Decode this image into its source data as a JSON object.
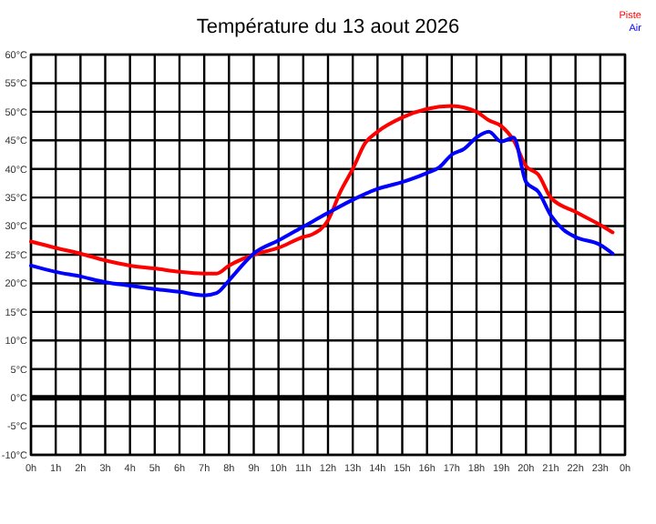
{
  "chart_data": {
    "type": "line",
    "title": "Température du 13 aout 2026",
    "xlim": [
      "2026-08-13T00:00",
      "2026-08-14T00:00"
    ],
    "xticks": [
      {
        "value": "2026-08-13T00:00",
        "label": "0h"
      },
      {
        "value": "2026-08-13T01:00",
        "label": "1h"
      },
      {
        "value": "2026-08-13T02:00",
        "label": "2h"
      },
      {
        "value": "2026-08-13T03:00",
        "label": "3h"
      },
      {
        "value": "2026-08-13T04:00",
        "label": "4h"
      },
      {
        "value": "2026-08-13T05:00",
        "label": "5h"
      },
      {
        "value": "2026-08-13T06:00",
        "label": "6h"
      },
      {
        "value": "2026-08-13T07:00",
        "label": "7h"
      },
      {
        "value": "2026-08-13T08:00",
        "label": "8h"
      },
      {
        "value": "2026-08-13T09:00",
        "label": "9h"
      },
      {
        "value": "2026-08-13T10:00",
        "label": "10h"
      },
      {
        "value": "2026-08-13T11:00",
        "label": "11h"
      },
      {
        "value": "2026-08-13T12:00",
        "label": "12h"
      },
      {
        "value": "2026-08-13T13:00",
        "label": "13h"
      },
      {
        "value": "2026-08-13T14:00",
        "label": "14h"
      },
      {
        "value": "2026-08-13T15:00",
        "label": "15h"
      },
      {
        "value": "2026-08-13T16:00",
        "label": "16h"
      },
      {
        "value": "2026-08-13T17:00",
        "label": "17h"
      },
      {
        "value": "2026-08-13T18:00",
        "label": "18h"
      },
      {
        "value": "2026-08-13T19:00",
        "label": "19h"
      },
      {
        "value": "2026-08-13T20:00",
        "label": "20h"
      },
      {
        "value": "2026-08-13T21:00",
        "label": "21h"
      },
      {
        "value": "2026-08-13T22:00",
        "label": "22h"
      },
      {
        "value": "2026-08-13T23:00",
        "label": "23h"
      },
      {
        "value": "2026-08-14T00:00",
        "label": "0h"
      }
    ],
    "ylim": [
      -10,
      60
    ],
    "yticks": [
      {
        "value": -10,
        "label": "-10°C"
      },
      {
        "value": -5,
        "label": "-5°C"
      },
      {
        "value": 0,
        "label": "0°C"
      },
      {
        "value": 5,
        "label": "5°C"
      },
      {
        "value": 10,
        "label": "10°C"
      },
      {
        "value": 15,
        "label": "15°C"
      },
      {
        "value": 20,
        "label": "20°C"
      },
      {
        "value": 25,
        "label": "25°C"
      },
      {
        "value": 30,
        "label": "30°C"
      },
      {
        "value": 35,
        "label": "35°C"
      },
      {
        "value": 40,
        "label": "40°C"
      },
      {
        "value": 45,
        "label": "45°C"
      },
      {
        "value": 50,
        "label": "50°C"
      },
      {
        "value": 55,
        "label": "55°C"
      },
      {
        "value": 60,
        "label": "60°C"
      }
    ],
    "grid": true,
    "legend": "top right",
    "marker": "none",
    "line_style": "solid",
    "ref_lines": [
      {
        "axis": "y",
        "value": 0,
        "color": "#000000"
      }
    ],
    "series": [
      {
        "name": "Piste",
        "color": "#ff0000",
        "x": [
          "2026-08-13T00:00",
          "2026-08-13T01:00",
          "2026-08-13T02:00",
          "2026-08-13T03:00",
          "2026-08-13T04:00",
          "2026-08-13T05:00",
          "2026-08-13T06:00",
          "2026-08-13T07:00",
          "2026-08-13T07:30",
          "2026-08-13T08:00",
          "2026-08-13T09:00",
          "2026-08-13T10:00",
          "2026-08-13T11:00",
          "2026-08-13T11:20",
          "2026-08-13T12:00",
          "2026-08-13T12:30",
          "2026-08-13T13:00",
          "2026-08-13T13:30",
          "2026-08-13T14:00",
          "2026-08-13T15:00",
          "2026-08-13T16:00",
          "2026-08-13T17:00",
          "2026-08-13T18:00",
          "2026-08-13T18:30",
          "2026-08-13T19:00",
          "2026-08-13T19:30",
          "2026-08-13T20:00",
          "2026-08-13T20:30",
          "2026-08-13T21:00",
          "2026-08-13T22:00",
          "2026-08-13T23:00",
          "2026-08-13T23:30"
        ],
        "values": [
          27.3,
          26.2,
          25.2,
          24,
          23.1,
          22.6,
          22,
          21.7,
          21.7,
          23.1,
          25,
          26.2,
          28.1,
          28.5,
          31,
          36,
          40,
          44.5,
          46.5,
          49,
          50.5,
          51,
          50,
          48.5,
          47.5,
          45,
          40.5,
          39,
          35,
          32.5,
          30.2,
          28.9
        ]
      },
      {
        "name": "Air",
        "color": "#0000ff",
        "x": [
          "2026-08-13T00:00",
          "2026-08-13T01:00",
          "2026-08-13T02:00",
          "2026-08-13T03:00",
          "2026-08-13T04:00",
          "2026-08-13T05:00",
          "2026-08-13T06:00",
          "2026-08-13T07:00",
          "2026-08-13T07:30",
          "2026-08-13T08:00",
          "2026-08-13T08:30",
          "2026-08-13T09:00",
          "2026-08-13T10:00",
          "2026-08-13T11:00",
          "2026-08-13T12:00",
          "2026-08-13T13:00",
          "2026-08-13T14:00",
          "2026-08-13T15:00",
          "2026-08-13T16:00",
          "2026-08-13T16:30",
          "2026-08-13T17:00",
          "2026-08-13T17:30",
          "2026-08-13T18:00",
          "2026-08-13T18:30",
          "2026-08-13T19:00",
          "2026-08-13T19:30",
          "2026-08-13T20:00",
          "2026-08-13T20:30",
          "2026-08-13T21:00",
          "2026-08-13T21:30",
          "2026-08-13T22:00",
          "2026-08-13T23:00",
          "2026-08-13T23:30"
        ],
        "values": [
          23.1,
          22,
          21.2,
          20.2,
          19.6,
          19,
          18.5,
          17.9,
          18.3,
          20.5,
          23,
          25.2,
          27.5,
          29.9,
          32.3,
          34.6,
          36.5,
          37.7,
          39.3,
          40.3,
          42.5,
          43.5,
          45.5,
          46.5,
          44.8,
          45.5,
          37.7,
          36,
          31.9,
          29.4,
          28.1,
          26.7,
          25.2
        ]
      }
    ]
  }
}
